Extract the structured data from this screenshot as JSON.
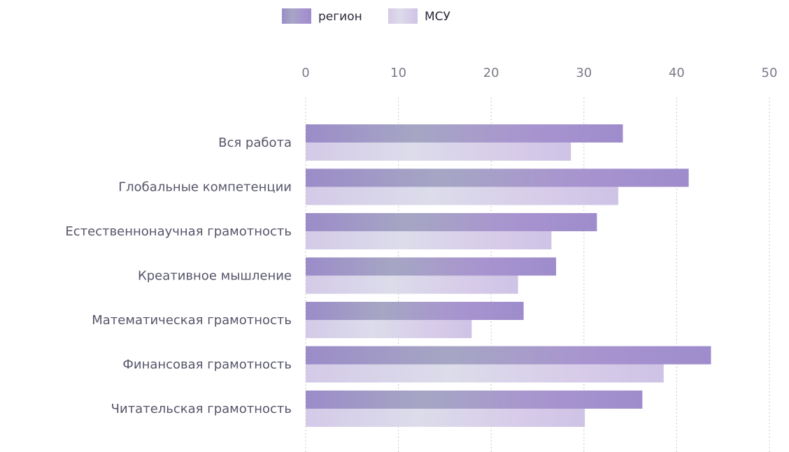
{
  "chart_data": {
    "type": "bar",
    "orientation": "horizontal",
    "categories": [
      "Вся работа",
      "Глобальные компетенции",
      "Естественнонаучная грамотность",
      "Креативное мышление",
      "Математическая грамотность",
      "Финансовая грамотность",
      "Читательская грамотность"
    ],
    "series": [
      {
        "name": "регион",
        "values": [
          34.2,
          41.3,
          31.4,
          27.0,
          23.5,
          43.7,
          36.3
        ]
      },
      {
        "name": "МСУ",
        "values": [
          28.6,
          33.7,
          26.5,
          22.9,
          17.9,
          38.6,
          30.1
        ]
      }
    ],
    "xlim": [
      0,
      50
    ],
    "xticks": [
      "0",
      "10",
      "20",
      "30",
      "40",
      "50"
    ],
    "x_axis_position": "top",
    "legend_position": "top",
    "grid": true,
    "colors": {
      "region": "#a99ad0",
      "msu": "#d6cde8"
    }
  }
}
